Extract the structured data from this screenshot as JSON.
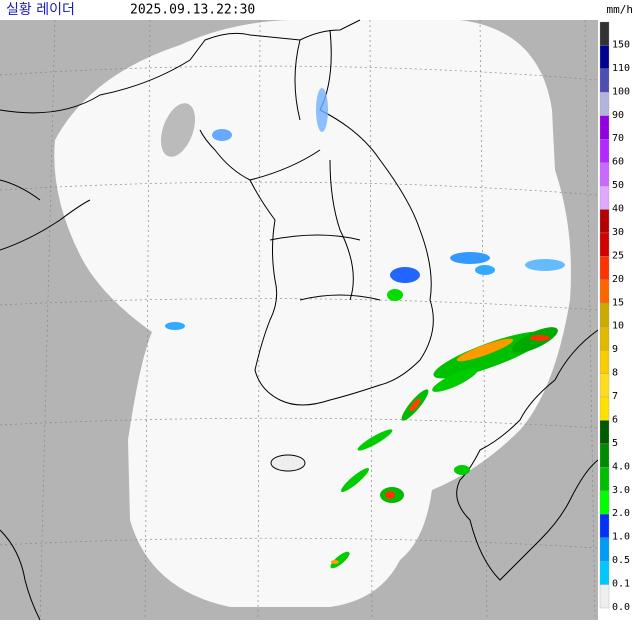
{
  "header": {
    "title": "실황 레이더",
    "time": "2025.09.13.22:30"
  },
  "legend": {
    "unit": "mm/h",
    "items": [
      {
        "label": "150",
        "color": "#333333"
      },
      {
        "label": "110",
        "color": "#000390"
      },
      {
        "label": "100",
        "color": "#4c4eb1"
      },
      {
        "label": "90",
        "color": "#b3b4de"
      },
      {
        "label": "70",
        "color": "#9300e4"
      },
      {
        "label": "60",
        "color": "#b329ff"
      },
      {
        "label": "50",
        "color": "#c969ff"
      },
      {
        "label": "40",
        "color": "#dfa9ff"
      },
      {
        "label": "30",
        "color": "#b40000"
      },
      {
        "label": "25",
        "color": "#d20000"
      },
      {
        "label": "20",
        "color": "#ff3300"
      },
      {
        "label": "15",
        "color": "#ff6600"
      },
      {
        "label": "10",
        "color": "#ccaa00"
      },
      {
        "label": "9",
        "color": "#e0b900"
      },
      {
        "label": "8",
        "color": "#f9cd00"
      },
      {
        "label": "7",
        "color": "#ffdc1f"
      },
      {
        "label": "6",
        "color": "#ffe100"
      },
      {
        "label": "5",
        "color": "#005a00"
      },
      {
        "label": "4.0",
        "color": "#008c00"
      },
      {
        "label": "3.0",
        "color": "#00be00"
      },
      {
        "label": "2.0",
        "color": "#00ff00"
      },
      {
        "label": "1.0",
        "color": "#0033f5"
      },
      {
        "label": "0.5",
        "color": "#009bf5"
      },
      {
        "label": "0.1",
        "color": "#00c8ff"
      },
      {
        "label": "0.0",
        "color": "#eeeeee"
      }
    ]
  }
}
